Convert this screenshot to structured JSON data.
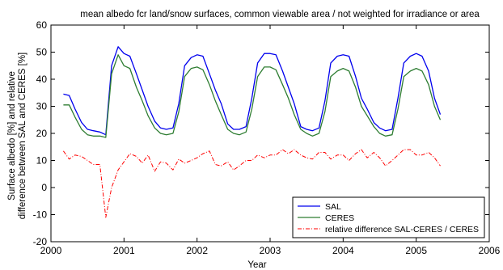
{
  "chart_data": {
    "type": "line",
    "title": "mean albedo fcr land/snow surfaces, common viewable area / not weighted for irradiance or area",
    "xlabel": "Year",
    "ylabel_line1": "Surface albedo [%] and relative",
    "ylabel_line2": "difference between SAL and CERES [%]",
    "xlim": [
      2000,
      2006
    ],
    "ylim": [
      -20,
      60
    ],
    "xticks": [
      2000,
      2001,
      2002,
      2003,
      2004,
      2005,
      2006
    ],
    "yticks": [
      -20,
      -10,
      0,
      10,
      20,
      30,
      40,
      50,
      60
    ],
    "grid": false,
    "legend_position": "bottom-right",
    "series": [
      {
        "name": "SAL",
        "color": "#0000ee",
        "style": "solid",
        "x": [
          2000.17,
          2000.25,
          2000.33,
          2000.42,
          2000.5,
          2000.58,
          2000.67,
          2000.75,
          2000.83,
          2000.92,
          2001.0,
          2001.08,
          2001.17,
          2001.25,
          2001.33,
          2001.42,
          2001.5,
          2001.58,
          2001.67,
          2001.75,
          2001.83,
          2001.92,
          2002.0,
          2002.08,
          2002.17,
          2002.25,
          2002.33,
          2002.42,
          2002.5,
          2002.58,
          2002.67,
          2002.75,
          2002.83,
          2002.92,
          2003.0,
          2003.08,
          2003.17,
          2003.25,
          2003.33,
          2003.42,
          2003.5,
          2003.58,
          2003.67,
          2003.75,
          2003.83,
          2003.92,
          2004.0,
          2004.08,
          2004.17,
          2004.25,
          2004.33,
          2004.42,
          2004.5,
          2004.58,
          2004.67,
          2004.75,
          2004.83,
          2004.92,
          2005.0,
          2005.08,
          2005.17,
          2005.25,
          2005.33
        ],
        "y": [
          34.5,
          34,
          29,
          24,
          21.5,
          21,
          20.5,
          19.5,
          45,
          52,
          49.5,
          48.5,
          42,
          36,
          30,
          24.5,
          22,
          21.5,
          22,
          31,
          45,
          48,
          49,
          48.5,
          42,
          36,
          31,
          23.5,
          21.5,
          21.5,
          22.5,
          33,
          46,
          49.5,
          49.5,
          49,
          43,
          37,
          31,
          22.5,
          21.5,
          21,
          22,
          32,
          46,
          48.5,
          49,
          48.5,
          41,
          33,
          29,
          24,
          22,
          21,
          21.5,
          33,
          46,
          48.5,
          49.5,
          48.5,
          43,
          33,
          27
        ]
      },
      {
        "name": "CERES",
        "color": "#2e7d32",
        "style": "solid",
        "x": [
          2000.17,
          2000.25,
          2000.33,
          2000.42,
          2000.5,
          2000.58,
          2000.67,
          2000.75,
          2000.83,
          2000.92,
          2001.0,
          2001.08,
          2001.17,
          2001.25,
          2001.33,
          2001.42,
          2001.5,
          2001.58,
          2001.67,
          2001.75,
          2001.83,
          2001.92,
          2002.0,
          2002.08,
          2002.17,
          2002.25,
          2002.33,
          2002.42,
          2002.5,
          2002.58,
          2002.67,
          2002.75,
          2002.83,
          2002.92,
          2003.0,
          2003.08,
          2003.17,
          2003.25,
          2003.33,
          2003.42,
          2003.5,
          2003.58,
          2003.67,
          2003.75,
          2003.83,
          2003.92,
          2004.0,
          2004.08,
          2004.17,
          2004.25,
          2004.33,
          2004.42,
          2004.5,
          2004.58,
          2004.67,
          2004.75,
          2004.83,
          2004.92,
          2005.0,
          2005.08,
          2005.17,
          2005.25,
          2005.33
        ],
        "y": [
          30.5,
          30.5,
          26,
          21.5,
          19.5,
          19,
          19,
          18.5,
          42,
          49,
          45,
          44,
          37,
          32,
          26.5,
          22,
          20,
          19.5,
          20,
          28,
          41,
          44,
          44.5,
          43.5,
          38,
          32,
          27,
          21.5,
          20,
          19.5,
          20.5,
          29,
          41,
          44.5,
          44.5,
          43.5,
          38,
          33,
          27,
          21.5,
          20,
          19,
          20,
          28,
          41,
          43,
          44,
          43,
          37,
          30,
          26.5,
          22.5,
          20,
          19,
          19.5,
          29,
          41,
          43,
          44,
          43,
          38,
          30,
          25
        ]
      },
      {
        "name": "relative difference SAL-CERES / CERES",
        "color": "#ff0000",
        "style": "dashdot",
        "x": [
          2000.17,
          2000.25,
          2000.33,
          2000.42,
          2000.5,
          2000.58,
          2000.67,
          2000.75,
          2000.83,
          2000.92,
          2001.0,
          2001.08,
          2001.17,
          2001.25,
          2001.33,
          2001.42,
          2001.5,
          2001.58,
          2001.67,
          2001.75,
          2001.83,
          2001.92,
          2002.0,
          2002.08,
          2002.17,
          2002.25,
          2002.33,
          2002.42,
          2002.5,
          2002.58,
          2002.67,
          2002.75,
          2002.83,
          2002.92,
          2003.0,
          2003.08,
          2003.17,
          2003.25,
          2003.33,
          2003.42,
          2003.5,
          2003.58,
          2003.67,
          2003.75,
          2003.83,
          2003.92,
          2004.0,
          2004.08,
          2004.17,
          2004.25,
          2004.33,
          2004.42,
          2004.5,
          2004.58,
          2004.67,
          2004.75,
          2004.83,
          2004.92,
          2005.0,
          2005.08,
          2005.17,
          2005.25,
          2005.33
        ],
        "y": [
          13.5,
          10.5,
          12,
          11.5,
          10,
          8.5,
          8.5,
          -11,
          0,
          6.5,
          9.5,
          12.5,
          11.5,
          9,
          12,
          6,
          9.5,
          9,
          6.5,
          10.5,
          9,
          10,
          11,
          12.5,
          13.5,
          8.5,
          8,
          9.5,
          6.5,
          8,
          10,
          10,
          12,
          11,
          12,
          12,
          14,
          12.5,
          14,
          12,
          11,
          10.5,
          13,
          13,
          10.5,
          12,
          12,
          10,
          12.5,
          14,
          11,
          13,
          11,
          8,
          10,
          12,
          14,
          14,
          12,
          12,
          13,
          11,
          8
        ]
      }
    ]
  }
}
